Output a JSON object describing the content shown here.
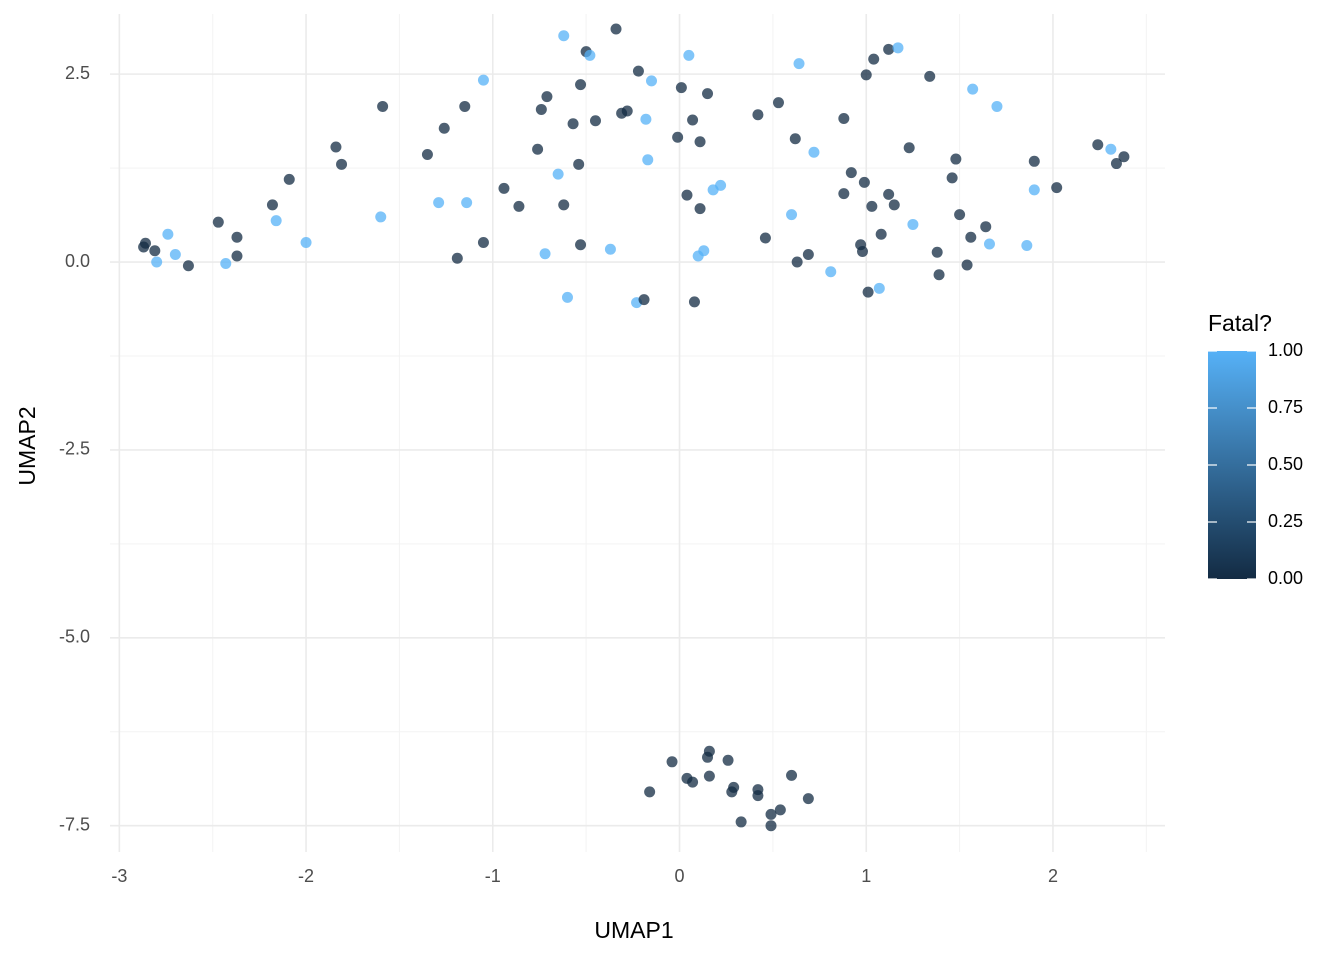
{
  "colors": {
    "low": "#132B43",
    "high": "#56B1F7",
    "grid_major": "#ebebeb",
    "grid_minor": "#f3f3f3"
  },
  "chart_data": {
    "type": "scatter",
    "title": "",
    "xlabel": "UMAP1",
    "ylabel": "UMAP2",
    "xlim": [
      -3.05,
      2.6
    ],
    "ylim": [
      -7.85,
      3.3
    ],
    "x_ticks": [
      -3,
      -2,
      -1,
      0,
      1,
      2
    ],
    "x_tick_labels": [
      "-3",
      "-2",
      "-1",
      "0",
      "1",
      "2"
    ],
    "y_ticks": [
      2.5,
      0,
      -2.5,
      -5,
      -7.5
    ],
    "y_tick_labels": [
      "2.5",
      "0.0",
      "-2.5",
      "-5.0",
      "-7.5"
    ],
    "grid": true,
    "legend": {
      "title": "Fatal?",
      "placement": "right",
      "type": "colorbar",
      "range": [
        0,
        1
      ],
      "labels": [
        "1.00",
        "0.75",
        "0.50",
        "0.25",
        "0.00"
      ],
      "values": [
        1,
        0.75,
        0.5,
        0.25,
        0
      ]
    },
    "points": [
      {
        "x": -2.86,
        "y": 0.25,
        "v": 0
      },
      {
        "x": -2.87,
        "y": 0.2,
        "v": 0
      },
      {
        "x": -2.81,
        "y": 0.15,
        "v": 0
      },
      {
        "x": -2.8,
        "y": 0.0,
        "v": 1
      },
      {
        "x": -2.74,
        "y": 0.37,
        "v": 1
      },
      {
        "x": -2.7,
        "y": 0.1,
        "v": 1
      },
      {
        "x": -2.63,
        "y": -0.05,
        "v": 0
      },
      {
        "x": -2.47,
        "y": 0.53,
        "v": 0
      },
      {
        "x": -2.43,
        "y": -0.02,
        "v": 1
      },
      {
        "x": -2.37,
        "y": 0.33,
        "v": 0
      },
      {
        "x": -2.37,
        "y": 0.08,
        "v": 0
      },
      {
        "x": -2.18,
        "y": 0.76,
        "v": 0
      },
      {
        "x": -2.16,
        "y": 0.55,
        "v": 1
      },
      {
        "x": -2.09,
        "y": 1.1,
        "v": 0
      },
      {
        "x": -2.0,
        "y": 0.26,
        "v": 1
      },
      {
        "x": -1.84,
        "y": 1.53,
        "v": 0
      },
      {
        "x": -1.81,
        "y": 1.3,
        "v": 0
      },
      {
        "x": -1.6,
        "y": 0.6,
        "v": 1
      },
      {
        "x": -1.59,
        "y": 2.07,
        "v": 0
      },
      {
        "x": -1.35,
        "y": 1.43,
        "v": 0
      },
      {
        "x": -1.29,
        "y": 0.79,
        "v": 1
      },
      {
        "x": -1.26,
        "y": 1.78,
        "v": 0
      },
      {
        "x": -1.19,
        "y": 0.05,
        "v": 0
      },
      {
        "x": -1.15,
        "y": 2.07,
        "v": 0
      },
      {
        "x": -1.14,
        "y": 0.79,
        "v": 1
      },
      {
        "x": -1.05,
        "y": 0.26,
        "v": 0
      },
      {
        "x": -1.05,
        "y": 2.42,
        "v": 1
      },
      {
        "x": -0.94,
        "y": 0.98,
        "v": 0
      },
      {
        "x": -0.86,
        "y": 0.74,
        "v": 0
      },
      {
        "x": -0.76,
        "y": 1.5,
        "v": 0
      },
      {
        "x": -0.74,
        "y": 2.03,
        "v": 0
      },
      {
        "x": -0.72,
        "y": 0.11,
        "v": 1
      },
      {
        "x": -0.71,
        "y": 2.2,
        "v": 0
      },
      {
        "x": -0.65,
        "y": 1.17,
        "v": 1
      },
      {
        "x": -0.62,
        "y": 0.76,
        "v": 0
      },
      {
        "x": -0.62,
        "y": 3.01,
        "v": 1
      },
      {
        "x": -0.6,
        "y": -0.47,
        "v": 1
      },
      {
        "x": -0.57,
        "y": 1.84,
        "v": 0
      },
      {
        "x": -0.54,
        "y": 1.3,
        "v": 0
      },
      {
        "x": -0.53,
        "y": 0.23,
        "v": 0
      },
      {
        "x": -0.53,
        "y": 2.36,
        "v": 0
      },
      {
        "x": -0.5,
        "y": 2.8,
        "v": 0
      },
      {
        "x": -0.48,
        "y": 2.75,
        "v": 1
      },
      {
        "x": -0.45,
        "y": 1.88,
        "v": 0
      },
      {
        "x": -0.37,
        "y": 0.17,
        "v": 1
      },
      {
        "x": -0.34,
        "y": 3.1,
        "v": 0
      },
      {
        "x": -0.31,
        "y": 1.98,
        "v": 0
      },
      {
        "x": -0.28,
        "y": 2.01,
        "v": 0
      },
      {
        "x": -0.22,
        "y": 2.54,
        "v": 0
      },
      {
        "x": -0.23,
        "y": -0.54,
        "v": 1
      },
      {
        "x": -0.19,
        "y": -0.5,
        "v": 0
      },
      {
        "x": -0.18,
        "y": 1.9,
        "v": 1
      },
      {
        "x": -0.17,
        "y": 1.36,
        "v": 1
      },
      {
        "x": -0.15,
        "y": 2.41,
        "v": 1
      },
      {
        "x": -0.01,
        "y": 1.66,
        "v": 0
      },
      {
        "x": 0.01,
        "y": 2.32,
        "v": 0
      },
      {
        "x": 0.04,
        "y": 0.89,
        "v": 0
      },
      {
        "x": 0.05,
        "y": 2.75,
        "v": 1
      },
      {
        "x": 0.07,
        "y": 1.89,
        "v": 0
      },
      {
        "x": 0.08,
        "y": -0.53,
        "v": 0
      },
      {
        "x": 0.1,
        "y": 0.08,
        "v": 1
      },
      {
        "x": 0.11,
        "y": 1.6,
        "v": 0
      },
      {
        "x": 0.11,
        "y": 0.71,
        "v": 0
      },
      {
        "x": 0.13,
        "y": 0.15,
        "v": 1
      },
      {
        "x": 0.15,
        "y": 2.24,
        "v": 0
      },
      {
        "x": 0.18,
        "y": 0.96,
        "v": 1
      },
      {
        "x": 0.22,
        "y": 1.02,
        "v": 1
      },
      {
        "x": 0.42,
        "y": 1.96,
        "v": 0
      },
      {
        "x": 0.46,
        "y": 0.32,
        "v": 0
      },
      {
        "x": 0.53,
        "y": 2.12,
        "v": 0
      },
      {
        "x": 0.6,
        "y": 0.63,
        "v": 1
      },
      {
        "x": 0.62,
        "y": 1.64,
        "v": 0
      },
      {
        "x": 0.63,
        "y": 0.0,
        "v": 0
      },
      {
        "x": 0.64,
        "y": 2.64,
        "v": 1
      },
      {
        "x": 0.69,
        "y": 0.1,
        "v": 0
      },
      {
        "x": 0.72,
        "y": 1.46,
        "v": 1
      },
      {
        "x": 0.81,
        "y": -0.13,
        "v": 1
      },
      {
        "x": 0.88,
        "y": 1.91,
        "v": 0
      },
      {
        "x": 0.88,
        "y": 0.91,
        "v": 0
      },
      {
        "x": 0.92,
        "y": 1.19,
        "v": 0
      },
      {
        "x": 0.97,
        "y": 0.23,
        "v": 0
      },
      {
        "x": 0.98,
        "y": 0.14,
        "v": 0
      },
      {
        "x": 0.99,
        "y": 1.06,
        "v": 0
      },
      {
        "x": 1.0,
        "y": 2.49,
        "v": 0
      },
      {
        "x": 1.01,
        "y": -0.4,
        "v": 0
      },
      {
        "x": 1.03,
        "y": 0.74,
        "v": 0
      },
      {
        "x": 1.04,
        "y": 2.7,
        "v": 0
      },
      {
        "x": 1.07,
        "y": -0.35,
        "v": 1
      },
      {
        "x": 1.08,
        "y": 0.37,
        "v": 0
      },
      {
        "x": 1.12,
        "y": 2.83,
        "v": 0
      },
      {
        "x": 1.12,
        "y": 0.9,
        "v": 0
      },
      {
        "x": 1.15,
        "y": 0.76,
        "v": 0
      },
      {
        "x": 1.17,
        "y": 2.85,
        "v": 1
      },
      {
        "x": 1.23,
        "y": 1.52,
        "v": 0
      },
      {
        "x": 1.25,
        "y": 0.5,
        "v": 1
      },
      {
        "x": 1.34,
        "y": 2.47,
        "v": 0
      },
      {
        "x": 1.38,
        "y": 0.13,
        "v": 0
      },
      {
        "x": 1.39,
        "y": -0.17,
        "v": 0
      },
      {
        "x": 1.46,
        "y": 1.12,
        "v": 0
      },
      {
        "x": 1.48,
        "y": 1.37,
        "v": 0
      },
      {
        "x": 1.5,
        "y": 0.63,
        "v": 0
      },
      {
        "x": 1.54,
        "y": -0.04,
        "v": 0
      },
      {
        "x": 1.56,
        "y": 0.33,
        "v": 0
      },
      {
        "x": 1.57,
        "y": 2.3,
        "v": 1
      },
      {
        "x": 1.64,
        "y": 0.47,
        "v": 0
      },
      {
        "x": 1.66,
        "y": 0.24,
        "v": 1
      },
      {
        "x": 1.7,
        "y": 2.07,
        "v": 1
      },
      {
        "x": 1.86,
        "y": 0.22,
        "v": 1
      },
      {
        "x": 1.9,
        "y": 1.34,
        "v": 0
      },
      {
        "x": 1.9,
        "y": 0.96,
        "v": 1
      },
      {
        "x": 2.02,
        "y": 0.99,
        "v": 0
      },
      {
        "x": 2.24,
        "y": 1.56,
        "v": 0
      },
      {
        "x": 2.31,
        "y": 1.5,
        "v": 1
      },
      {
        "x": 2.34,
        "y": 1.31,
        "v": 0
      },
      {
        "x": 2.38,
        "y": 1.4,
        "v": 0
      },
      {
        "x": -0.04,
        "y": -6.65,
        "v": 0
      },
      {
        "x": -0.16,
        "y": -7.05,
        "v": 0
      },
      {
        "x": 0.04,
        "y": -6.87,
        "v": 0
      },
      {
        "x": 0.07,
        "y": -6.92,
        "v": 0
      },
      {
        "x": 0.15,
        "y": -6.59,
        "v": 0
      },
      {
        "x": 0.16,
        "y": -6.51,
        "v": 0
      },
      {
        "x": 0.16,
        "y": -6.84,
        "v": 0
      },
      {
        "x": 0.26,
        "y": -6.63,
        "v": 0
      },
      {
        "x": 0.28,
        "y": -7.05,
        "v": 0
      },
      {
        "x": 0.29,
        "y": -6.99,
        "v": 0
      },
      {
        "x": 0.33,
        "y": -7.45,
        "v": 0
      },
      {
        "x": 0.42,
        "y": -7.02,
        "v": 0
      },
      {
        "x": 0.42,
        "y": -7.1,
        "v": 0
      },
      {
        "x": 0.49,
        "y": -7.35,
        "v": 0
      },
      {
        "x": 0.49,
        "y": -7.5,
        "v": 0
      },
      {
        "x": 0.54,
        "y": -7.29,
        "v": 0
      },
      {
        "x": 0.6,
        "y": -6.83,
        "v": 0
      },
      {
        "x": 0.69,
        "y": -7.14,
        "v": 0
      }
    ]
  }
}
